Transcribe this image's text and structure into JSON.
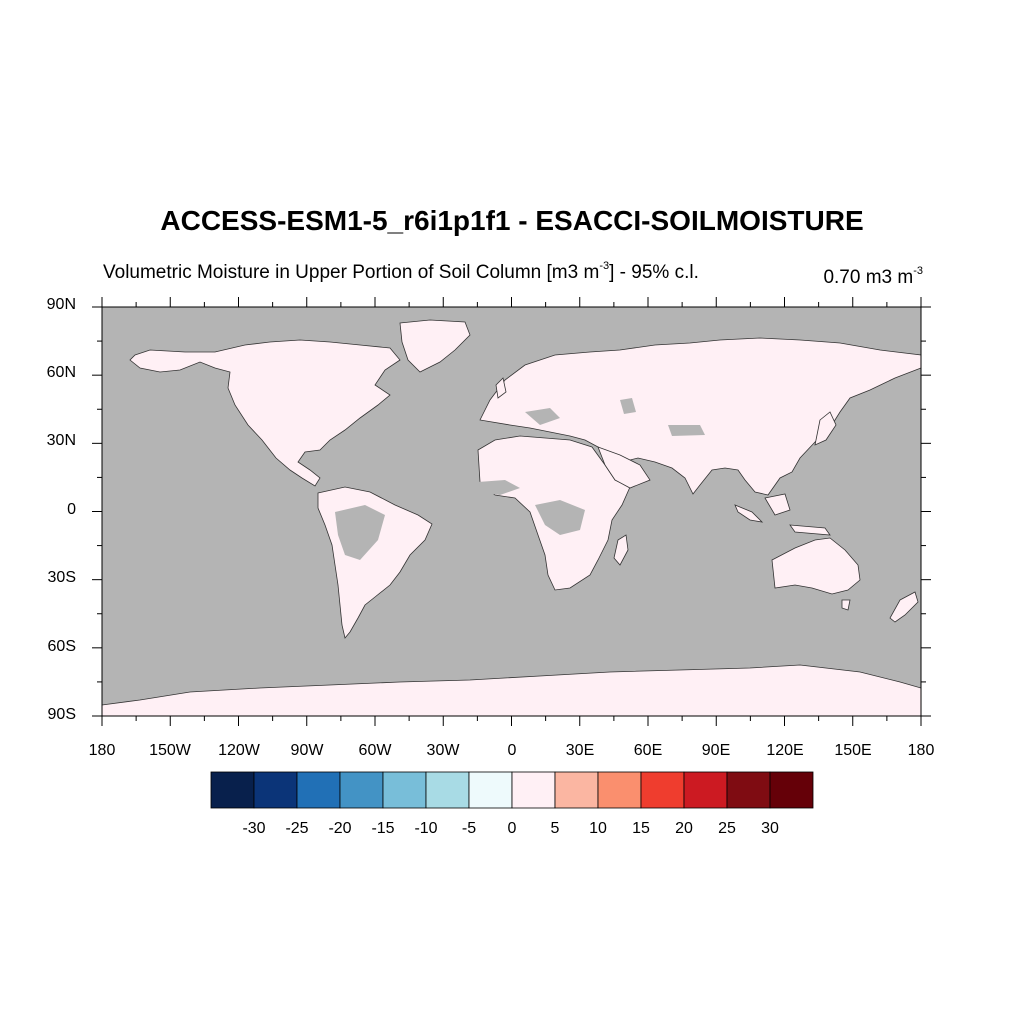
{
  "title": "ACCESS-ESM1-5_r6i1p1f1 - ESACCI-SOILMOISTURE",
  "subtitle": {
    "left_text": "Volumetric Moisture in Upper Portion of Soil Column [m3 m",
    "left_sup": "-3",
    "left_suffix": "] - 95% c.l.",
    "right_text": "0.70 m3 m",
    "right_sup": "-3"
  },
  "map": {
    "projection": "cylindrical-equidistant",
    "lat_labels": [
      "90N",
      "60N",
      "30N",
      "0",
      "30S",
      "60S",
      "90S"
    ],
    "lon_labels": [
      "180",
      "150W",
      "120W",
      "90W",
      "60W",
      "30W",
      "0",
      "30E",
      "60E",
      "90E",
      "120E",
      "150E",
      "180"
    ],
    "colors": {
      "missing_gray": "#b4b4b4",
      "land_fill": "#fff0f5",
      "coastline": "#333333"
    }
  },
  "colorbar": {
    "labels": [
      "-30",
      "-25",
      "-20",
      "-15",
      "-10",
      "-5",
      "0",
      "5",
      "10",
      "15",
      "20",
      "25",
      "30"
    ],
    "colors": [
      "#08204c",
      "#0b3478",
      "#2170b6",
      "#4393c5",
      "#78bed9",
      "#a8dbe5",
      "#eefafc",
      "#fff0f5",
      "#fbb6a2",
      "#fa8f6e",
      "#ef3d2e",
      "#cc1a22",
      "#7f0c12",
      "#650008"
    ]
  }
}
